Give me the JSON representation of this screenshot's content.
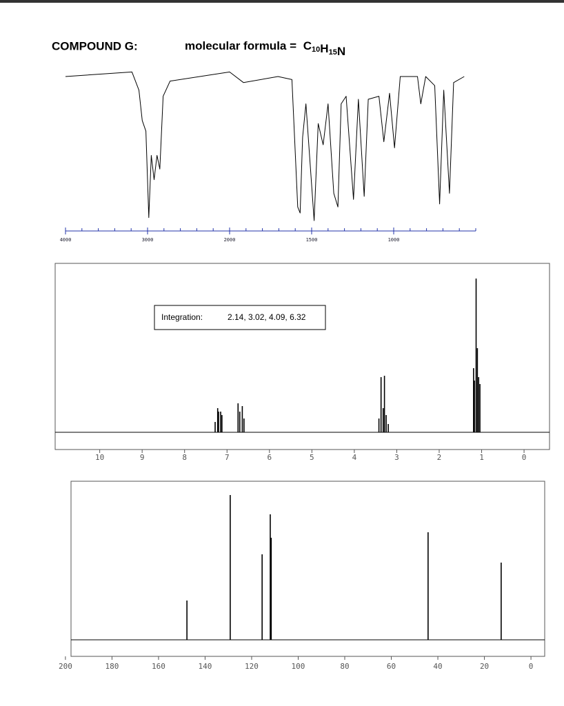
{
  "header": {
    "title": "COMPOUND G:",
    "formula_label": "molecular formula =",
    "formula": [
      {
        "symbol": "C",
        "count": "10"
      },
      {
        "symbol": "H",
        "count": "15"
      },
      {
        "symbol": "N"
      }
    ]
  },
  "chart_data": [
    {
      "type": "line",
      "color": "#000000",
      "axis_color": "#2233aa",
      "xlim": [
        4000,
        500
      ],
      "scale_break": {
        "at": 2000,
        "factor": 2
      },
      "ylim": [
        0,
        100
      ],
      "xticks": [
        4000,
        3000,
        2000,
        1500,
        1000
      ],
      "xminor_ticks": [
        3800,
        3600,
        3400,
        3200,
        2800,
        2600,
        2400,
        2200,
        1900,
        1800,
        1700,
        1600,
        1400,
        1300,
        1200,
        1100,
        900,
        800,
        700,
        600,
        500
      ],
      "x": [
        4000,
        3190,
        3105,
        3065,
        3020,
        2985,
        2955,
        2920,
        2885,
        2850,
        2810,
        2725,
        2000,
        1915,
        1705,
        1620,
        1585,
        1570,
        1555,
        1535,
        1485,
        1460,
        1430,
        1400,
        1365,
        1340,
        1320,
        1290,
        1245,
        1215,
        1180,
        1155,
        1090,
        1060,
        1025,
        995,
        960,
        855,
        835,
        805,
        750,
        720,
        695,
        660,
        635,
        570
      ],
      "values": [
        95,
        98,
        86,
        66,
        59,
        2,
        43,
        27,
        43,
        34,
        82,
        92,
        98,
        91,
        95,
        93,
        9,
        5,
        55,
        77,
        0,
        64,
        50,
        77,
        18,
        9,
        77,
        82,
        14,
        80,
        16,
        80,
        82,
        52,
        84,
        48,
        95,
        95,
        77,
        95,
        89,
        11,
        86,
        18,
        91,
        95
      ]
    },
    {
      "type": "spectrum",
      "color": "#000000",
      "xlim": [
        11.05,
        -0.6
      ],
      "ylim": [
        0,
        245
      ],
      "xticks": [
        10,
        9,
        8,
        7,
        6,
        5,
        4,
        3,
        2,
        1,
        0
      ],
      "annotation": {
        "label": "Integration:",
        "text": "2.14, 3.02, 4.09, 6.32"
      },
      "x": [
        7.28,
        7.22,
        7.2,
        7.15,
        7.12,
        6.74,
        6.7,
        6.64,
        6.6,
        3.42,
        3.37,
        3.32,
        3.29,
        3.25,
        3.2,
        1.19,
        1.17,
        1.13,
        1.1,
        1.07,
        1.04
      ],
      "values": [
        15,
        35,
        30,
        30,
        25,
        42,
        30,
        38,
        20,
        20,
        80,
        35,
        82,
        25,
        12,
        93,
        75,
        223,
        122,
        80,
        70
      ]
    },
    {
      "type": "spectrum",
      "color": "#000000",
      "xlim": [
        197.6,
        -5.9
      ],
      "ylim": [
        0,
        230
      ],
      "xticks": [
        200,
        180,
        160,
        140,
        120,
        100,
        80,
        60,
        40,
        20,
        0
      ],
      "x": [
        147.8,
        129.2,
        115.5,
        112.0,
        111.6,
        44.2,
        12.8
      ],
      "values": [
        57,
        210,
        124,
        182,
        148,
        156,
        112
      ]
    }
  ]
}
